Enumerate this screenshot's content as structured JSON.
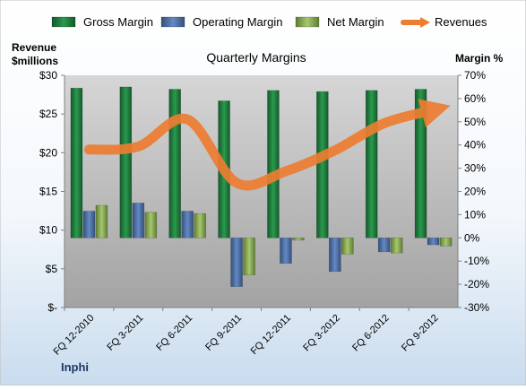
{
  "chart_data": {
    "type": "bar",
    "title": "Quarterly Margins",
    "company": "Inphi",
    "left_axis": {
      "label_line1": "Revenue",
      "label_line2": "$millions",
      "ticks": [
        "$30",
        "$25",
        "$20",
        "$15",
        "$10",
        "$5",
        "$-"
      ],
      "ylim": [
        0,
        30
      ]
    },
    "right_axis": {
      "label": "Margin %",
      "ticks": [
        "70%",
        "60%",
        "50%",
        "40%",
        "30%",
        "20%",
        "10%",
        "0%",
        "-10%",
        "-20%",
        "-30%"
      ],
      "ylim": [
        -30,
        70
      ]
    },
    "categories": [
      "FQ 12-2010",
      "FQ 3-2011",
      "FQ 6-2011",
      "FQ 9-2011",
      "FQ 12-2011",
      "FQ 3-2012",
      "FQ 6-2012",
      "FQ 9-2012"
    ],
    "series": [
      {
        "name": "Gross Margin",
        "kind": "bar",
        "axis": "right",
        "color": "#1e7a3c",
        "values": [
          64.5,
          65,
          64,
          59,
          63.5,
          63,
          63.5,
          64
        ]
      },
      {
        "name": "Operating Margin",
        "kind": "bar",
        "axis": "right",
        "color": "#4a6fa5",
        "values": [
          11.5,
          15,
          11.5,
          -21,
          -11,
          -14.5,
          -6,
          -3
        ]
      },
      {
        "name": "Net Margin",
        "kind": "bar",
        "axis": "right",
        "color": "#8db05a",
        "values": [
          14,
          11,
          10.5,
          -16,
          -1,
          -7,
          -6.5,
          -3.5
        ]
      },
      {
        "name": "Revenues",
        "kind": "line",
        "axis": "left",
        "color": "#ed7d31",
        "values": [
          20.4,
          20.8,
          24.3,
          16.1,
          17.6,
          20.3,
          23.8,
          25.5
        ]
      }
    ],
    "legend_position": "top"
  }
}
